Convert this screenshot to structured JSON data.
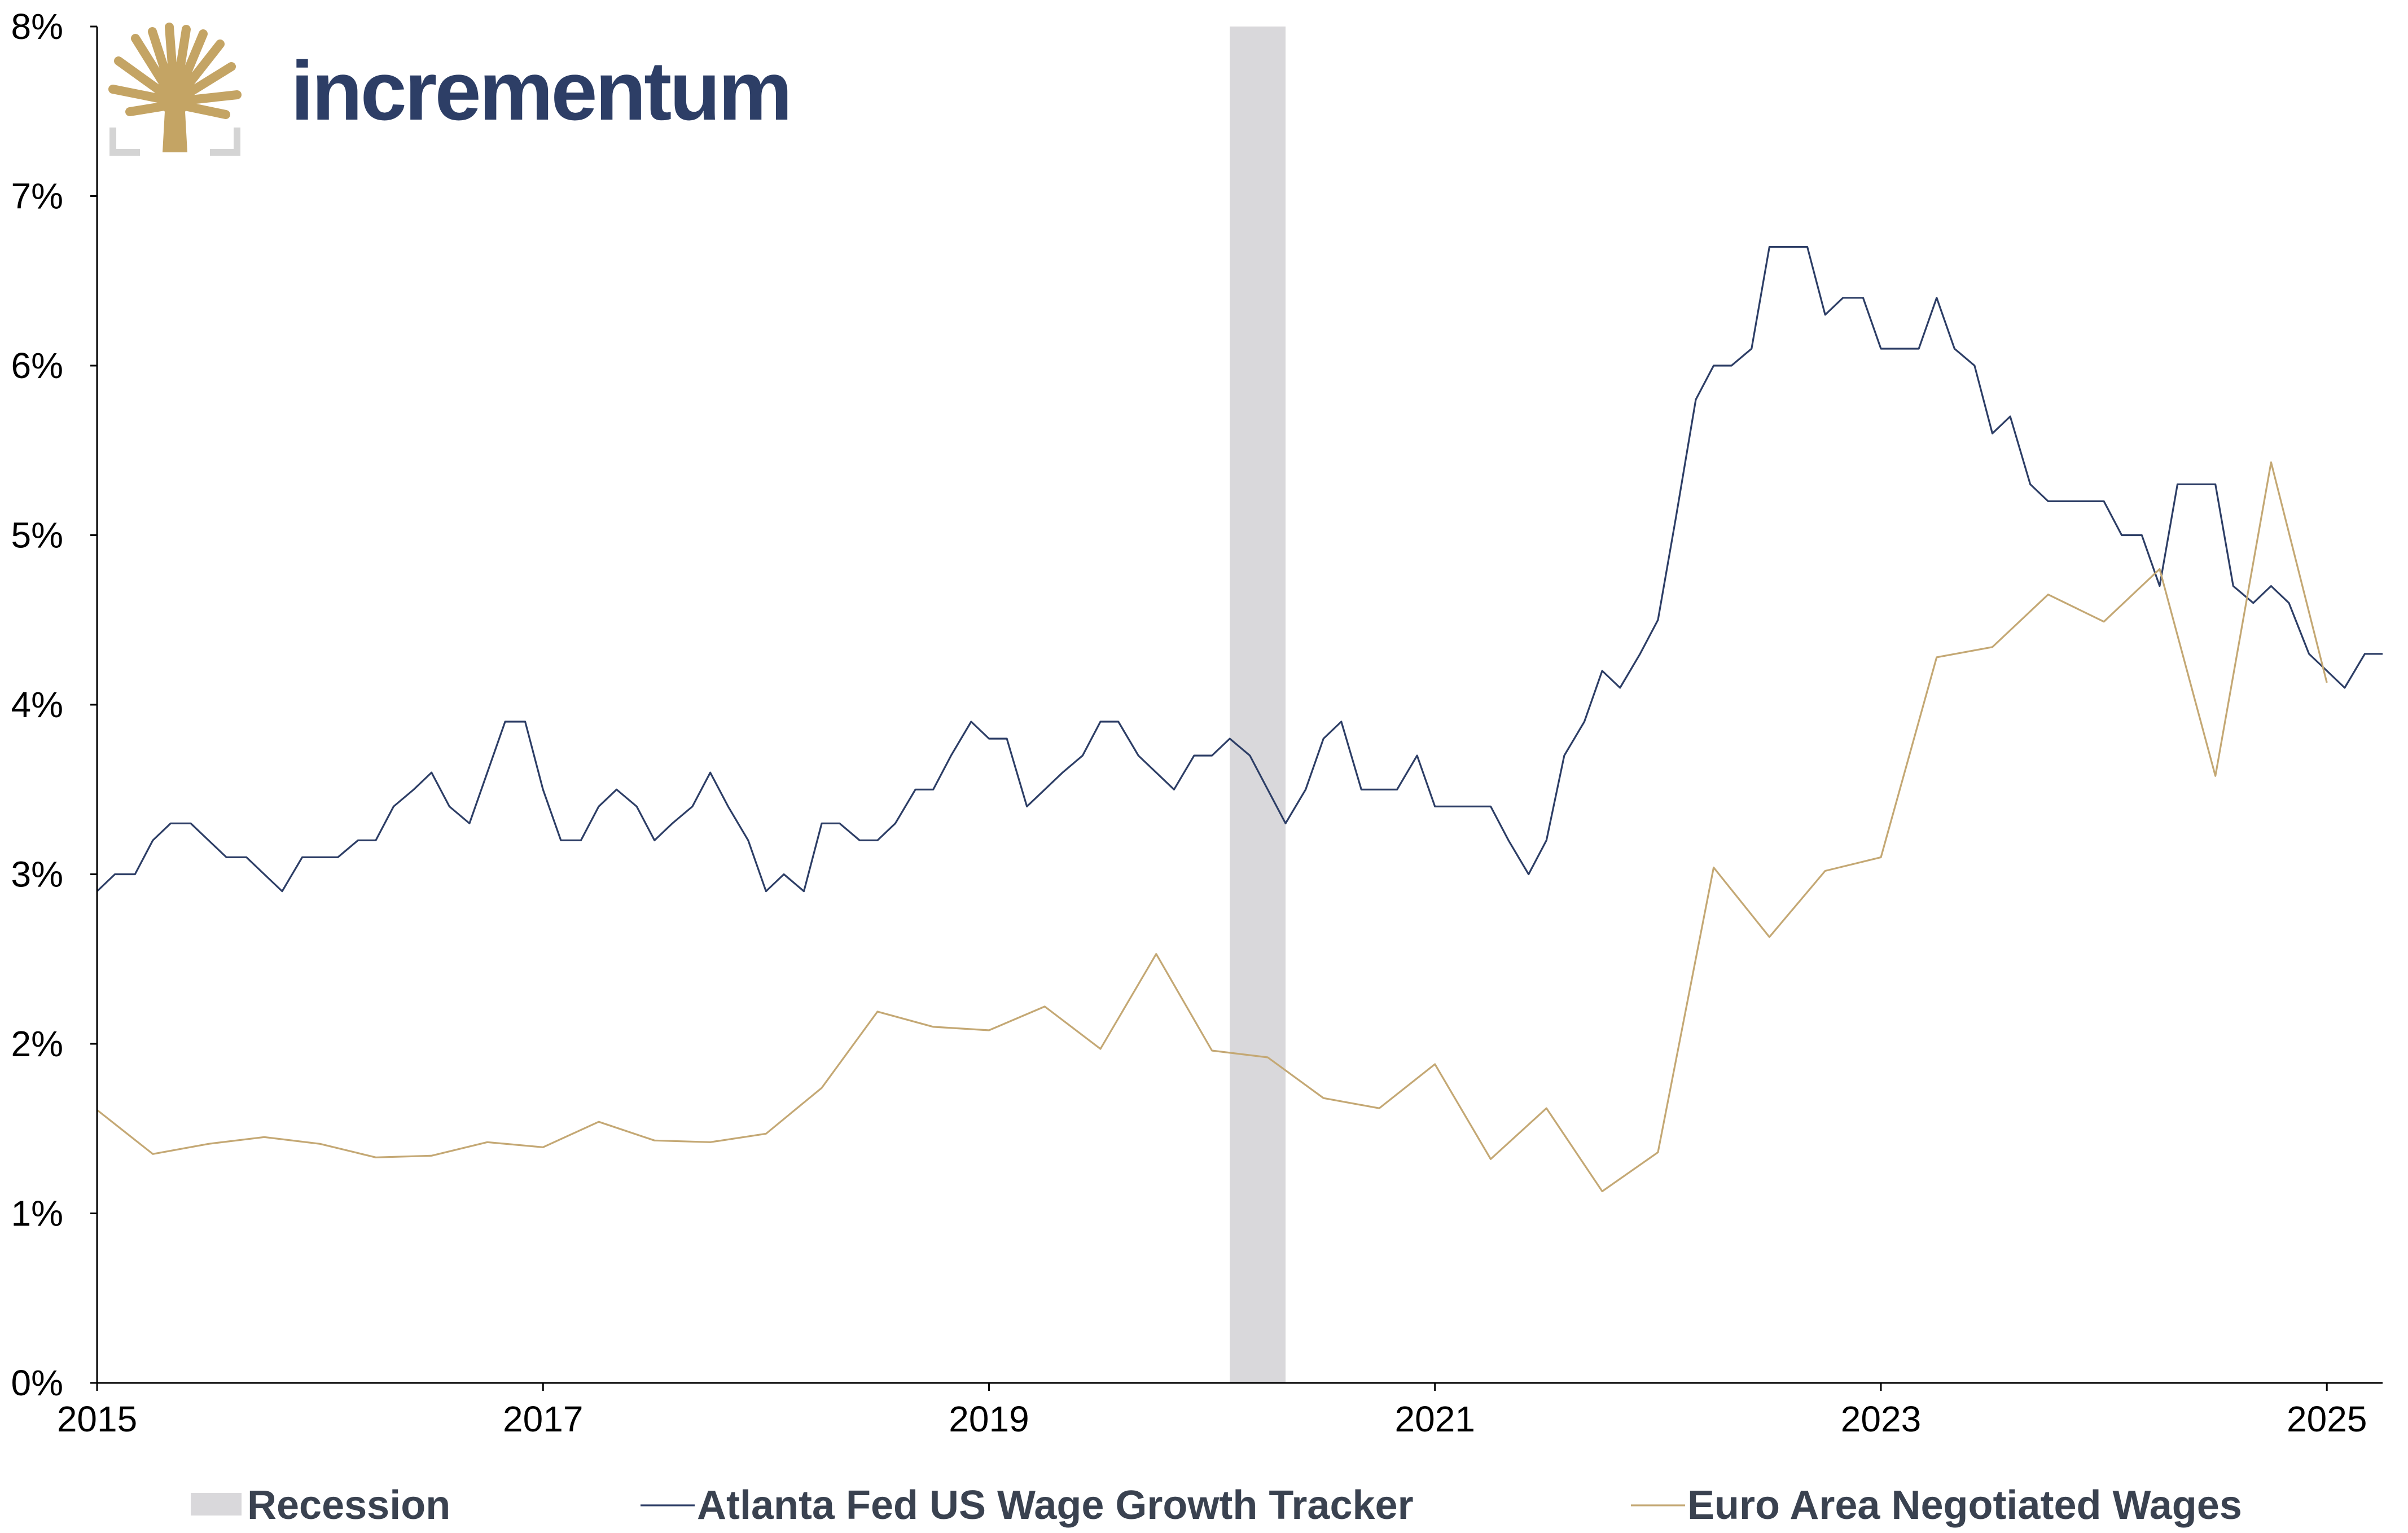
{
  "logo": {
    "text": "incrementum",
    "icon": "tree-icon",
    "gold_color": "#c4a464",
    "navy_color": "#2d3e66"
  },
  "chart_data": {
    "type": "line",
    "title": "",
    "xlabel": "",
    "ylabel": "",
    "xlim": [
      2015.0,
      2025.25
    ],
    "ylim": [
      0,
      8
    ],
    "x_tick_values": [
      2015,
      2017,
      2019,
      2021,
      2023,
      2025
    ],
    "x_tick_labels": [
      "2015",
      "2017",
      "2019",
      "2021",
      "2023",
      "2025"
    ],
    "y_tick_values": [
      0,
      1,
      2,
      3,
      4,
      5,
      6,
      7,
      8
    ],
    "y_tick_labels": [
      "0%",
      "1%",
      "2%",
      "3%",
      "4%",
      "5%",
      "6%",
      "7%",
      "8%"
    ],
    "grid": false,
    "legend_position": "bottom",
    "recession": {
      "name": "Recession",
      "start": 2020.08,
      "end": 2020.33,
      "color": "#d9d8db"
    },
    "series": [
      {
        "name": "Atlanta Fed US Wage Growth Tracker",
        "color": "#2d3e66",
        "points": [
          [
            2015.0,
            2.9
          ],
          [
            2015.08,
            3.0
          ],
          [
            2015.17,
            3.0
          ],
          [
            2015.25,
            3.2
          ],
          [
            2015.33,
            3.3
          ],
          [
            2015.42,
            3.3
          ],
          [
            2015.5,
            3.2
          ],
          [
            2015.58,
            3.1
          ],
          [
            2015.67,
            3.1
          ],
          [
            2015.75,
            3.0
          ],
          [
            2015.83,
            2.9
          ],
          [
            2015.92,
            3.1
          ],
          [
            2016.0,
            3.1
          ],
          [
            2016.08,
            3.1
          ],
          [
            2016.17,
            3.2
          ],
          [
            2016.25,
            3.2
          ],
          [
            2016.33,
            3.4
          ],
          [
            2016.42,
            3.5
          ],
          [
            2016.5,
            3.6
          ],
          [
            2016.58,
            3.4
          ],
          [
            2016.67,
            3.3
          ],
          [
            2016.75,
            3.6
          ],
          [
            2016.83,
            3.9
          ],
          [
            2016.92,
            3.9
          ],
          [
            2017.0,
            3.5
          ],
          [
            2017.08,
            3.2
          ],
          [
            2017.17,
            3.2
          ],
          [
            2017.25,
            3.4
          ],
          [
            2017.33,
            3.5
          ],
          [
            2017.42,
            3.4
          ],
          [
            2017.5,
            3.2
          ],
          [
            2017.58,
            3.3
          ],
          [
            2017.67,
            3.4
          ],
          [
            2017.75,
            3.6
          ],
          [
            2017.83,
            3.4
          ],
          [
            2017.92,
            3.2
          ],
          [
            2018.0,
            2.9
          ],
          [
            2018.08,
            3.0
          ],
          [
            2018.17,
            2.9
          ],
          [
            2018.25,
            3.3
          ],
          [
            2018.33,
            3.3
          ],
          [
            2018.42,
            3.2
          ],
          [
            2018.5,
            3.2
          ],
          [
            2018.58,
            3.3
          ],
          [
            2018.67,
            3.5
          ],
          [
            2018.75,
            3.5
          ],
          [
            2018.83,
            3.7
          ],
          [
            2018.92,
            3.9
          ],
          [
            2019.0,
            3.8
          ],
          [
            2019.08,
            3.8
          ],
          [
            2019.17,
            3.4
          ],
          [
            2019.25,
            3.5
          ],
          [
            2019.33,
            3.6
          ],
          [
            2019.42,
            3.7
          ],
          [
            2019.5,
            3.9
          ],
          [
            2019.58,
            3.9
          ],
          [
            2019.67,
            3.7
          ],
          [
            2019.75,
            3.6
          ],
          [
            2019.83,
            3.5
          ],
          [
            2019.92,
            3.7
          ],
          [
            2020.0,
            3.7
          ],
          [
            2020.08,
            3.8
          ],
          [
            2020.17,
            3.7
          ],
          [
            2020.25,
            3.5
          ],
          [
            2020.33,
            3.3
          ],
          [
            2020.42,
            3.5
          ],
          [
            2020.5,
            3.8
          ],
          [
            2020.58,
            3.9
          ],
          [
            2020.67,
            3.5
          ],
          [
            2020.75,
            3.5
          ],
          [
            2020.83,
            3.5
          ],
          [
            2020.92,
            3.7
          ],
          [
            2021.0,
            3.4
          ],
          [
            2021.08,
            3.4
          ],
          [
            2021.17,
            3.4
          ],
          [
            2021.25,
            3.4
          ],
          [
            2021.33,
            3.2
          ],
          [
            2021.42,
            3.0
          ],
          [
            2021.5,
            3.2
          ],
          [
            2021.58,
            3.7
          ],
          [
            2021.67,
            3.9
          ],
          [
            2021.75,
            4.2
          ],
          [
            2021.83,
            4.1
          ],
          [
            2021.92,
            4.3
          ],
          [
            2022.0,
            4.5
          ],
          [
            2022.08,
            5.1
          ],
          [
            2022.17,
            5.8
          ],
          [
            2022.25,
            6.0
          ],
          [
            2022.33,
            6.0
          ],
          [
            2022.42,
            6.1
          ],
          [
            2022.5,
            6.7
          ],
          [
            2022.58,
            6.7
          ],
          [
            2022.67,
            6.7
          ],
          [
            2022.75,
            6.3
          ],
          [
            2022.83,
            6.4
          ],
          [
            2022.92,
            6.4
          ],
          [
            2023.0,
            6.1
          ],
          [
            2023.08,
            6.1
          ],
          [
            2023.17,
            6.1
          ],
          [
            2023.25,
            6.4
          ],
          [
            2023.33,
            6.1
          ],
          [
            2023.42,
            6.0
          ],
          [
            2023.5,
            5.6
          ],
          [
            2023.58,
            5.7
          ],
          [
            2023.67,
            5.3
          ],
          [
            2023.75,
            5.2
          ],
          [
            2023.83,
            5.2
          ],
          [
            2023.92,
            5.2
          ],
          [
            2024.0,
            5.2
          ],
          [
            2024.08,
            5.0
          ],
          [
            2024.17,
            5.0
          ],
          [
            2024.25,
            4.7
          ],
          [
            2024.33,
            5.3
          ],
          [
            2024.42,
            5.3
          ],
          [
            2024.5,
            5.3
          ],
          [
            2024.58,
            4.7
          ],
          [
            2024.67,
            4.6
          ],
          [
            2024.75,
            4.7
          ],
          [
            2024.83,
            4.6
          ],
          [
            2024.92,
            4.3
          ],
          [
            2025.0,
            4.2
          ],
          [
            2025.08,
            4.1
          ],
          [
            2025.17,
            4.3
          ],
          [
            2025.25,
            4.3
          ]
        ]
      },
      {
        "name": "Euro Area Negotiated Wages",
        "color": "#c4a874",
        "points": [
          [
            2015.0,
            1.61
          ],
          [
            2015.25,
            1.35
          ],
          [
            2015.5,
            1.41
          ],
          [
            2015.75,
            1.45
          ],
          [
            2016.0,
            1.41
          ],
          [
            2016.25,
            1.33
          ],
          [
            2016.5,
            1.34
          ],
          [
            2016.75,
            1.42
          ],
          [
            2017.0,
            1.39
          ],
          [
            2017.25,
            1.54
          ],
          [
            2017.5,
            1.43
          ],
          [
            2017.75,
            1.42
          ],
          [
            2018.0,
            1.47
          ],
          [
            2018.25,
            1.74
          ],
          [
            2018.5,
            2.19
          ],
          [
            2018.75,
            2.1
          ],
          [
            2019.0,
            2.08
          ],
          [
            2019.25,
            2.22
          ],
          [
            2019.5,
            1.97
          ],
          [
            2019.75,
            2.53
          ],
          [
            2020.0,
            1.96
          ],
          [
            2020.25,
            1.92
          ],
          [
            2020.5,
            1.68
          ],
          [
            2020.75,
            1.62
          ],
          [
            2021.0,
            1.88
          ],
          [
            2021.25,
            1.32
          ],
          [
            2021.5,
            1.62
          ],
          [
            2021.75,
            1.13
          ],
          [
            2022.0,
            1.36
          ],
          [
            2022.25,
            3.04
          ],
          [
            2022.5,
            2.63
          ],
          [
            2022.75,
            3.02
          ],
          [
            2023.0,
            3.1
          ],
          [
            2023.25,
            4.28
          ],
          [
            2023.5,
            4.34
          ],
          [
            2023.75,
            4.65
          ],
          [
            2024.0,
            4.49
          ],
          [
            2024.25,
            4.8
          ],
          [
            2024.5,
            3.58
          ],
          [
            2024.75,
            5.43
          ],
          [
            2025.0,
            4.13
          ]
        ]
      }
    ],
    "legend": [
      {
        "label": "Recession",
        "kind": "patch",
        "color": "#d9d8db"
      },
      {
        "label": "Atlanta Fed US Wage Growth Tracker",
        "kind": "line",
        "color": "#2d3e66"
      },
      {
        "label": "Euro Area Negotiated Wages",
        "kind": "line",
        "color": "#c4a874"
      }
    ]
  }
}
